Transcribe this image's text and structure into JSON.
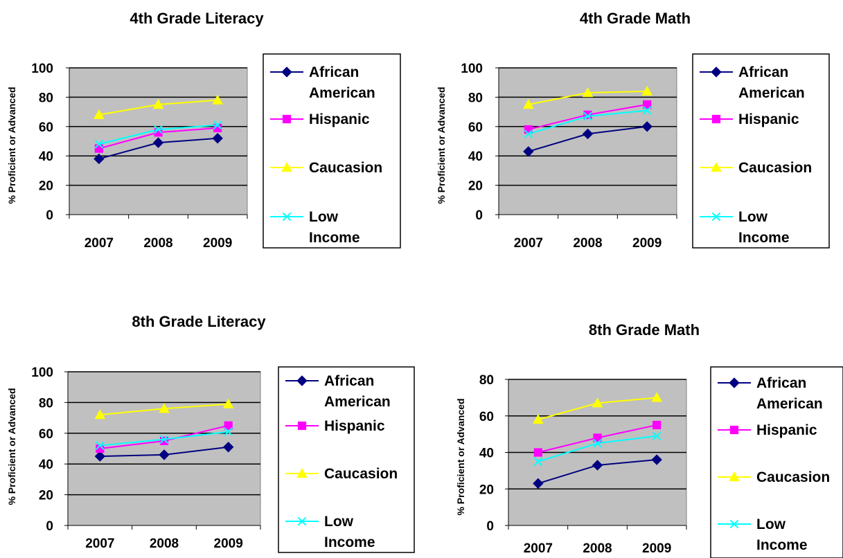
{
  "colors": {
    "plot_bg": "#C0C0C0",
    "grid": "#000000",
    "series": {
      "African American": "#000080",
      "Hispanic": "#FF00FF",
      "Caucasion": "#FFFF00",
      "Low Income": "#00FFFF"
    },
    "markers": {
      "African American": "diamond",
      "Hispanic": "square",
      "Caucasion": "triangle",
      "Low Income": "x"
    }
  },
  "chart_data": [
    {
      "type": "line",
      "title": "4th Grade Literacy",
      "ylabel": "% Proficient or Advanced",
      "xlabel": "",
      "categories": [
        "2007",
        "2008",
        "2009"
      ],
      "ylim": [
        0,
        100
      ],
      "yticks": [
        0,
        20,
        40,
        60,
        80,
        100
      ],
      "grid": true,
      "legend": "right",
      "series": [
        {
          "name": "African American",
          "values": [
            38,
            49,
            52
          ]
        },
        {
          "name": "Hispanic",
          "values": [
            45,
            56,
            59
          ]
        },
        {
          "name": "Caucasion",
          "values": [
            68,
            75,
            78
          ]
        },
        {
          "name": "Low Income",
          "values": [
            48,
            58,
            61
          ]
        }
      ]
    },
    {
      "type": "line",
      "title": "4th Grade Math",
      "ylabel": "% Proficient or Advanced",
      "xlabel": "",
      "categories": [
        "2007",
        "2008",
        "2009"
      ],
      "ylim": [
        0,
        100
      ],
      "yticks": [
        0,
        20,
        40,
        60,
        80,
        100
      ],
      "grid": true,
      "legend": "right",
      "series": [
        {
          "name": "African American",
          "values": [
            43,
            55,
            60
          ]
        },
        {
          "name": "Hispanic",
          "values": [
            58,
            68,
            75
          ]
        },
        {
          "name": "Caucasion",
          "values": [
            75,
            83,
            84
          ]
        },
        {
          "name": "Low Income",
          "values": [
            55,
            67,
            71
          ]
        }
      ]
    },
    {
      "type": "line",
      "title": "8th Grade Literacy",
      "ylabel": "% Proficient or Advanced",
      "xlabel": "",
      "categories": [
        "2007",
        "2008",
        "2009"
      ],
      "ylim": [
        0,
        100
      ],
      "yticks": [
        0,
        20,
        40,
        60,
        80,
        100
      ],
      "grid": true,
      "legend": "right",
      "series": [
        {
          "name": "African American",
          "values": [
            45,
            46,
            51
          ]
        },
        {
          "name": "Hispanic",
          "values": [
            50,
            55,
            65
          ]
        },
        {
          "name": "Caucasion",
          "values": [
            72,
            76,
            79
          ]
        },
        {
          "name": "Low Income",
          "values": [
            52,
            56,
            61
          ]
        }
      ]
    },
    {
      "type": "line",
      "title": "8th Grade Math",
      "ylabel": "% Proficient or Advanced",
      "xlabel": "",
      "categories": [
        "2007",
        "2008",
        "2009"
      ],
      "ylim": [
        0,
        80
      ],
      "yticks": [
        0,
        20,
        40,
        60,
        80
      ],
      "grid": true,
      "legend": "right",
      "series": [
        {
          "name": "African American",
          "values": [
            23,
            33,
            36
          ]
        },
        {
          "name": "Hispanic",
          "values": [
            40,
            48,
            55
          ]
        },
        {
          "name": "Caucasion",
          "values": [
            58,
            67,
            70
          ]
        },
        {
          "name": "Low Income",
          "values": [
            35,
            45,
            49
          ]
        }
      ]
    }
  ]
}
